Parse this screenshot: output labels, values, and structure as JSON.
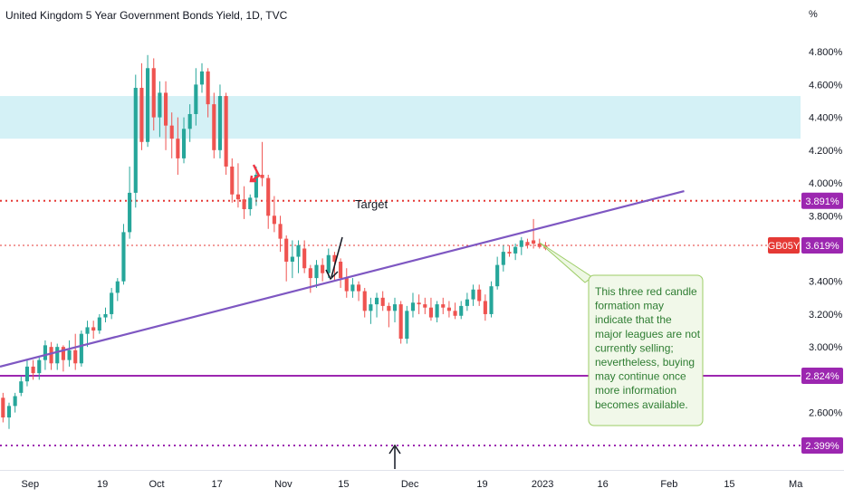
{
  "chart_data": {
    "type": "candlestick",
    "title": "United Kingdom 5 Year Government Bonds Yield, 1D, TVC",
    "unit_label": "%",
    "ylim": [
      2.25,
      4.95
    ],
    "yticks": [
      "4.800%",
      "4.600%",
      "4.400%",
      "4.200%",
      "4.000%",
      "3.800%",
      "3.400%",
      "3.200%",
      "3.000%",
      "2.600%"
    ],
    "ytick_values": [
      4.8,
      4.6,
      4.4,
      4.2,
      4.0,
      3.8,
      3.4,
      3.2,
      3.0,
      2.6
    ],
    "xticks": [
      "Sep",
      "19",
      "Oct",
      "17",
      "Nov",
      "15",
      "Dec",
      "19",
      "2023",
      "16",
      "Feb",
      "15",
      "Ma"
    ],
    "xtick_index": [
      4.5,
      16.5,
      25.5,
      35.5,
      46.5,
      56.5,
      67.5,
      79.5,
      89.5,
      99.5,
      110.5,
      120.5,
      131.5
    ],
    "x_index_range": [
      -0.5,
      132.3
    ],
    "colors": {
      "up": "#26a69a",
      "down": "#ef5350",
      "band": "#d4f1f6",
      "trend": "#7e57c2",
      "level": "#9c27b0",
      "red_level": "#e53935"
    },
    "band": [
      4.27,
      4.53
    ],
    "trendline": {
      "from": [
        -0.5,
        2.88
      ],
      "to": [
        113,
        3.95
      ]
    },
    "levels": [
      {
        "value": 3.891,
        "label": "3.891%",
        "style": "dotted-red"
      },
      {
        "value": 3.619,
        "label": "3.619%",
        "style": "dotted-red-thin",
        "ticker": "GB05Y"
      },
      {
        "value": 2.824,
        "label": "2.824%",
        "style": "solid-purple"
      },
      {
        "value": 2.399,
        "label": "2.399%",
        "style": "dotted-purple"
      }
    ],
    "annotations": {
      "target_label": "Target",
      "note": [
        "This three red candle",
        "formation may",
        "indicate that the",
        "major leagues are not",
        "currently selling;",
        "nevertheless, buying",
        "may continue once",
        "more information",
        "becomes available."
      ]
    },
    "candles": [
      [
        0,
        2.69,
        2.72,
        2.54,
        2.57
      ],
      [
        1,
        2.57,
        2.66,
        2.5,
        2.64
      ],
      [
        2,
        2.64,
        2.72,
        2.6,
        2.7
      ],
      [
        3,
        2.72,
        2.82,
        2.7,
        2.79
      ],
      [
        4,
        2.79,
        2.92,
        2.76,
        2.88
      ],
      [
        5,
        2.88,
        2.92,
        2.8,
        2.84
      ],
      [
        6,
        2.84,
        2.94,
        2.8,
        2.92
      ],
      [
        7,
        2.92,
        3.04,
        2.86,
        3.01
      ],
      [
        8,
        3.0,
        3.03,
        2.86,
        2.9
      ],
      [
        9,
        2.9,
        3.02,
        2.86,
        3.0
      ],
      [
        10,
        3.0,
        3.01,
        2.85,
        2.92
      ],
      [
        11,
        2.92,
        3.04,
        2.88,
        2.98
      ],
      [
        12,
        2.98,
        3.08,
        2.86,
        2.9
      ],
      [
        13,
        2.9,
        3.1,
        2.88,
        3.08
      ],
      [
        14,
        3.08,
        3.16,
        3.0,
        3.12
      ],
      [
        15,
        3.12,
        3.16,
        3.05,
        3.1
      ],
      [
        16,
        3.1,
        3.2,
        3.08,
        3.18
      ],
      [
        17,
        3.18,
        3.24,
        3.15,
        3.2
      ],
      [
        18,
        3.2,
        3.36,
        3.17,
        3.33
      ],
      [
        19,
        3.33,
        3.42,
        3.28,
        3.4
      ],
      [
        20,
        3.4,
        3.75,
        3.38,
        3.7
      ],
      [
        21,
        3.7,
        4.1,
        3.66,
        3.94
      ],
      [
        22,
        3.94,
        4.66,
        3.85,
        4.58
      ],
      [
        23,
        4.58,
        4.73,
        4.2,
        4.25
      ],
      [
        24,
        4.25,
        4.78,
        4.22,
        4.7
      ],
      [
        25,
        4.7,
        4.76,
        4.32,
        4.4
      ],
      [
        26,
        4.4,
        4.62,
        4.28,
        4.55
      ],
      [
        27,
        4.55,
        4.62,
        4.2,
        4.35
      ],
      [
        28,
        4.35,
        4.43,
        4.15,
        4.27
      ],
      [
        29,
        4.27,
        4.4,
        4.05,
        4.15
      ],
      [
        30,
        4.15,
        4.4,
        4.12,
        4.33
      ],
      [
        31,
        4.33,
        4.48,
        4.25,
        4.42
      ],
      [
        32,
        4.42,
        4.7,
        4.35,
        4.6
      ],
      [
        33,
        4.6,
        4.73,
        4.55,
        4.68
      ],
      [
        34,
        4.68,
        4.7,
        4.4,
        4.48
      ],
      [
        35,
        4.48,
        4.55,
        4.15,
        4.2
      ],
      [
        36,
        4.2,
        4.6,
        4.15,
        4.53
      ],
      [
        37,
        4.53,
        4.55,
        4.05,
        4.1
      ],
      [
        38,
        4.1,
        4.15,
        3.88,
        3.93
      ],
      [
        39,
        3.93,
        4.12,
        3.85,
        3.9
      ],
      [
        40,
        3.9,
        3.98,
        3.78,
        3.84
      ],
      [
        41,
        3.84,
        3.93,
        3.8,
        3.91
      ],
      [
        42,
        3.91,
        4.1,
        3.86,
        4.05
      ],
      [
        43,
        4.05,
        4.25,
        3.98,
        4.03
      ],
      [
        44,
        4.03,
        4.05,
        3.72,
        3.8
      ],
      [
        45,
        3.8,
        3.92,
        3.7,
        3.75
      ],
      [
        46,
        3.75,
        3.8,
        3.58,
        3.66
      ],
      [
        47,
        3.66,
        3.68,
        3.4,
        3.52
      ],
      [
        48,
        3.52,
        3.65,
        3.42,
        3.55
      ],
      [
        49,
        3.55,
        3.65,
        3.45,
        3.62
      ],
      [
        50,
        3.6,
        3.65,
        3.45,
        3.48
      ],
      [
        51,
        3.48,
        3.5,
        3.33,
        3.42
      ],
      [
        52,
        3.42,
        3.53,
        3.36,
        3.5
      ],
      [
        53,
        3.5,
        3.54,
        3.4,
        3.45
      ],
      [
        54,
        3.45,
        3.6,
        3.42,
        3.56
      ],
      [
        55,
        3.56,
        3.58,
        3.4,
        3.52
      ],
      [
        56,
        3.52,
        3.54,
        3.36,
        3.42
      ],
      [
        57,
        3.42,
        3.48,
        3.3,
        3.34
      ],
      [
        58,
        3.34,
        3.42,
        3.3,
        3.38
      ],
      [
        59,
        3.38,
        3.4,
        3.28,
        3.34
      ],
      [
        60,
        3.34,
        3.36,
        3.18,
        3.22
      ],
      [
        61,
        3.22,
        3.3,
        3.14,
        3.26
      ],
      [
        62,
        3.26,
        3.33,
        3.18,
        3.3
      ],
      [
        63,
        3.3,
        3.34,
        3.22,
        3.25
      ],
      [
        64,
        3.25,
        3.27,
        3.12,
        3.22
      ],
      [
        65,
        3.22,
        3.3,
        3.15,
        3.26
      ],
      [
        66,
        3.26,
        3.28,
        3.02,
        3.05
      ],
      [
        67,
        3.05,
        3.25,
        3.02,
        3.22
      ],
      [
        68,
        3.22,
        3.33,
        3.18,
        3.27
      ],
      [
        69,
        3.27,
        3.32,
        3.2,
        3.26
      ],
      [
        70,
        3.26,
        3.3,
        3.2,
        3.24
      ],
      [
        71,
        3.24,
        3.3,
        3.16,
        3.18
      ],
      [
        72,
        3.18,
        3.28,
        3.15,
        3.26
      ],
      [
        73,
        3.26,
        3.3,
        3.2,
        3.24
      ],
      [
        74,
        3.24,
        3.28,
        3.18,
        3.22
      ],
      [
        75,
        3.22,
        3.27,
        3.17,
        3.19
      ],
      [
        76,
        3.19,
        3.28,
        3.17,
        3.25
      ],
      [
        77,
        3.25,
        3.33,
        3.22,
        3.29
      ],
      [
        78,
        3.29,
        3.38,
        3.25,
        3.35
      ],
      [
        79,
        3.35,
        3.38,
        3.25,
        3.28
      ],
      [
        80,
        3.28,
        3.32,
        3.16,
        3.2
      ],
      [
        81,
        3.2,
        3.4,
        3.18,
        3.37
      ],
      [
        82,
        3.37,
        3.55,
        3.35,
        3.5
      ],
      [
        83,
        3.5,
        3.62,
        3.46,
        3.58
      ],
      [
        84,
        3.58,
        3.62,
        3.55,
        3.57
      ],
      [
        85,
        3.57,
        3.63,
        3.53,
        3.61
      ],
      [
        86,
        3.61,
        3.67,
        3.56,
        3.65
      ],
      [
        87,
        3.64,
        3.66,
        3.6,
        3.62
      ],
      [
        88,
        3.65,
        3.78,
        3.6,
        3.63
      ],
      [
        89,
        3.63,
        3.66,
        3.6,
        3.61
      ],
      [
        90,
        3.62,
        3.64,
        3.59,
        3.6
      ]
    ]
  }
}
